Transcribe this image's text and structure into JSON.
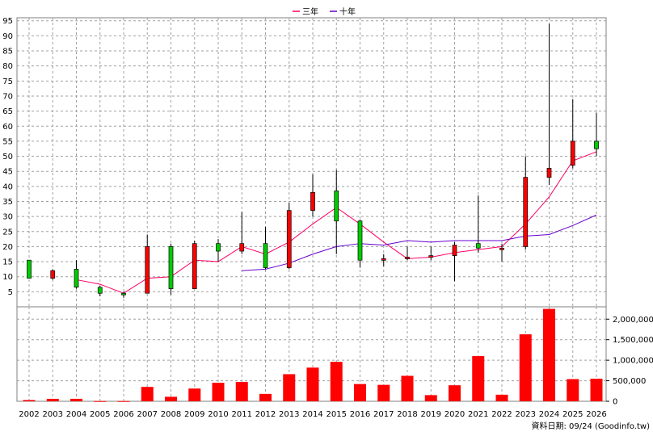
{
  "source_note": "資料日期: 09/24 (Goodinfo.tw)",
  "colors": {
    "up": "#ff0000",
    "down": "#00cc00",
    "ma3": "#ff0066",
    "ma10": "#6600cc",
    "volume": "#ff0000",
    "grid": "#a0a0a0"
  },
  "chart_data": [
    {
      "type": "candlestick",
      "legend": [
        {
          "name": "三年",
          "color": "#ff0066"
        },
        {
          "name": "十年",
          "color": "#6600cc"
        }
      ],
      "legend_position": "top-center",
      "grid": true,
      "ylim": [
        0,
        96
      ],
      "y_ticks": [
        5,
        10,
        15,
        20,
        25,
        30,
        35,
        40,
        45,
        50,
        55,
        60,
        65,
        70,
        75,
        80,
        85,
        90,
        95
      ],
      "categories": [
        "2002",
        "2003",
        "2004",
        "2005",
        "2006",
        "2007",
        "2008",
        "2009",
        "2010",
        "2011",
        "2012",
        "2013",
        "2014",
        "2015",
        "2016",
        "2017",
        "2018",
        "2019",
        "2020",
        "2021",
        "2022",
        "2023",
        "2024",
        "2025",
        "2026"
      ],
      "ohlc": [
        {
          "x": "2002",
          "open": 15.5,
          "high": 15.5,
          "low": 9.5,
          "close": 9.5
        },
        {
          "x": "2003",
          "open": 9.5,
          "high": 12.5,
          "low": 9.0,
          "close": 12.0
        },
        {
          "x": "2004",
          "open": 12.5,
          "high": 15.5,
          "low": 6.0,
          "close": 6.5
        },
        {
          "x": "2005",
          "open": 6.5,
          "high": 7.0,
          "low": 3.5,
          "close": 4.5
        },
        {
          "x": "2006",
          "open": 4.5,
          "high": 5.0,
          "low": 3.0,
          "close": 4.0
        },
        {
          "x": "2007",
          "open": 4.5,
          "high": 24.0,
          "low": 4.5,
          "close": 20.0
        },
        {
          "x": "2008",
          "open": 20.0,
          "high": 21.0,
          "low": 4.0,
          "close": 6.0
        },
        {
          "x": "2009",
          "open": 6.0,
          "high": 22.0,
          "low": 6.0,
          "close": 21.0
        },
        {
          "x": "2010",
          "open": 21.0,
          "high": 22.5,
          "low": 15.0,
          "close": 18.5
        },
        {
          "x": "2011",
          "open": 18.5,
          "high": 31.5,
          "low": 17.5,
          "close": 21.0
        },
        {
          "x": "2012",
          "open": 21.0,
          "high": 26.5,
          "low": 12.5,
          "close": 13.0
        },
        {
          "x": "2013",
          "open": 13.0,
          "high": 34.5,
          "low": 12.5,
          "close": 32.0
        },
        {
          "x": "2014",
          "open": 32.0,
          "high": 44.0,
          "low": 30.0,
          "close": 38.0
        },
        {
          "x": "2015",
          "open": 38.5,
          "high": 45.5,
          "low": 17.5,
          "close": 28.5
        },
        {
          "x": "2016",
          "open": 28.5,
          "high": 29.0,
          "low": 13.0,
          "close": 15.5
        },
        {
          "x": "2017",
          "open": 15.5,
          "high": 17.5,
          "low": 13.5,
          "close": 16.0
        },
        {
          "x": "2018",
          "open": 16.0,
          "high": 20.0,
          "low": 15.5,
          "close": 16.5
        },
        {
          "x": "2019",
          "open": 16.5,
          "high": 20.0,
          "low": 15.5,
          "close": 17.0
        },
        {
          "x": "2020",
          "open": 17.0,
          "high": 21.5,
          "low": 8.5,
          "close": 20.5
        },
        {
          "x": "2021",
          "open": 21.0,
          "high": 37.0,
          "low": 18.0,
          "close": 19.5
        },
        {
          "x": "2022",
          "open": 19.5,
          "high": 21.0,
          "low": 15.0,
          "close": 19.5
        },
        {
          "x": "2023",
          "open": 20.0,
          "high": 50.0,
          "low": 19.0,
          "close": 43.0
        },
        {
          "x": "2024",
          "open": 43.0,
          "high": 94.0,
          "low": 40.5,
          "close": 46.0
        },
        {
          "x": "2025",
          "open": 47.0,
          "high": 69.0,
          "low": 46.0,
          "close": 55.0
        },
        {
          "x": "2026",
          "open": 55.0,
          "high": 64.5,
          "low": 50.0,
          "close": 52.5
        }
      ],
      "series": [
        {
          "name": "三年",
          "values": [
            null,
            null,
            9.0,
            7.5,
            4.5,
            9.5,
            10.0,
            15.5,
            15.0,
            20.0,
            17.5,
            21.5,
            27.5,
            33.0,
            27.5,
            21.5,
            16.0,
            16.5,
            18.0,
            19.0,
            20.0,
            27.5,
            36.5,
            48.5,
            51.5
          ]
        },
        {
          "name": "十年",
          "values": [
            null,
            null,
            null,
            null,
            null,
            null,
            null,
            null,
            null,
            12.0,
            12.5,
            14.5,
            17.5,
            20.0,
            21.0,
            20.5,
            22.0,
            21.5,
            22.0,
            22.0,
            22.0,
            23.5,
            24.0,
            27.0,
            30.5
          ]
        }
      ]
    },
    {
      "type": "bar",
      "categories": [
        "2002",
        "2003",
        "2004",
        "2005",
        "2006",
        "2007",
        "2008",
        "2009",
        "2010",
        "2011",
        "2012",
        "2013",
        "2014",
        "2015",
        "2016",
        "2017",
        "2018",
        "2019",
        "2020",
        "2021",
        "2022",
        "2023",
        "2024",
        "2025",
        "2026"
      ],
      "values": [
        30000,
        60000,
        60000,
        5000,
        5000,
        350000,
        110000,
        310000,
        450000,
        470000,
        180000,
        660000,
        820000,
        960000,
        420000,
        400000,
        620000,
        150000,
        390000,
        1100000,
        160000,
        1630000,
        2250000,
        540000,
        550000
      ],
      "ylim": [
        0,
        2300000
      ],
      "y_ticks": [
        0,
        500000,
        1000000,
        1500000,
        2000000
      ],
      "y_tick_labels": [
        "0",
        "500,000",
        "1,000,000",
        "1,500,000",
        "2,000,000"
      ],
      "y_axis_side": "right",
      "grid": true
    }
  ]
}
